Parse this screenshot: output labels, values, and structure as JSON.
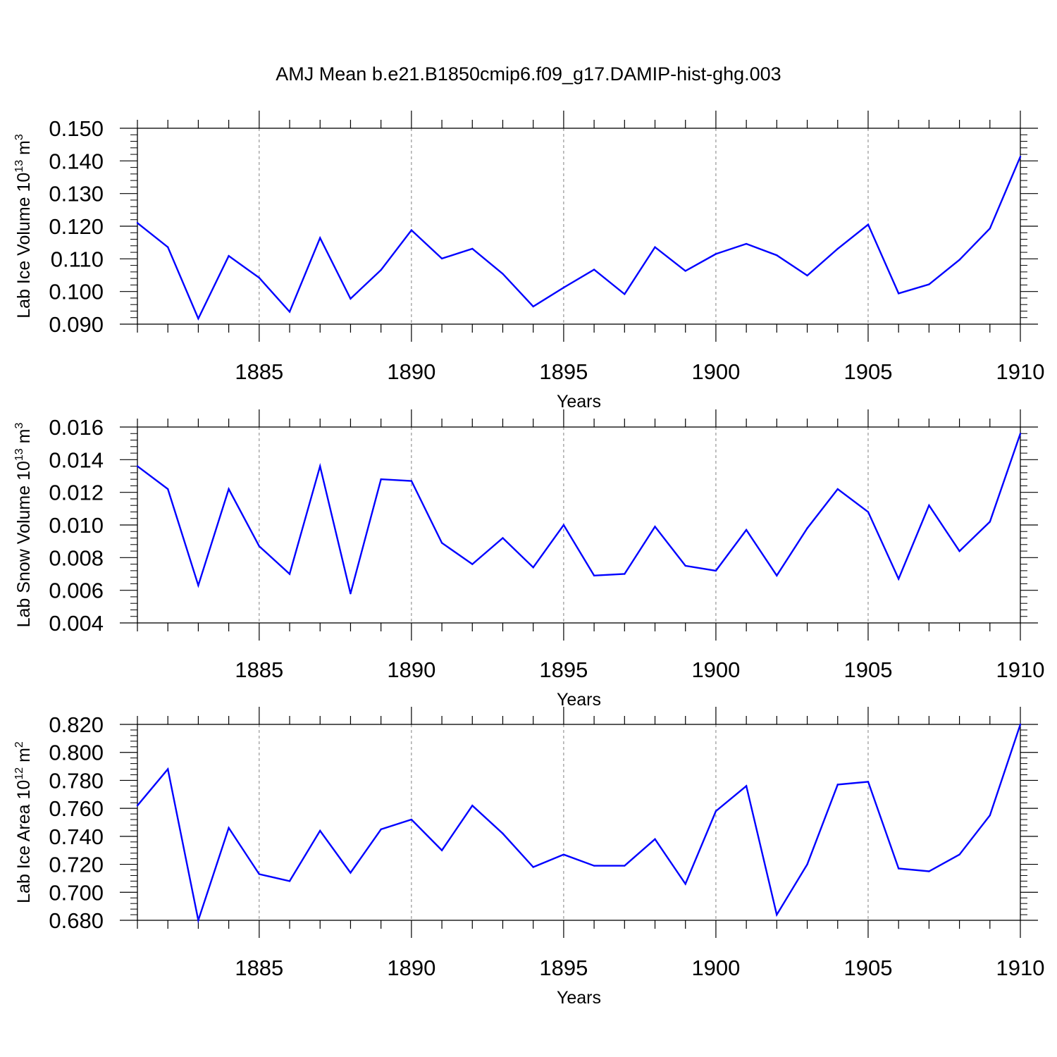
{
  "title": "AMJ Mean b.e21.B1850cmip6.f09_g17.DAMIP-hist-ghg.003",
  "colors": {
    "line": "#0000ff",
    "axis": "#000000",
    "grid": "#808080"
  },
  "chart_data": [
    {
      "type": "line",
      "ylabel": "Lab Ice Volume 10",
      "ylabel_exp": "13",
      "ylabel_unit": "m",
      "ylabel_unit_exp": "3",
      "xlabel": "Years",
      "xlim": [
        1881,
        1910
      ],
      "ylim": [
        0.09,
        0.15
      ],
      "yticks": [
        "0.090",
        "0.100",
        "0.110",
        "0.120",
        "0.130",
        "0.140",
        "0.150"
      ],
      "xticks": [
        "1885",
        "1890",
        "1895",
        "1900",
        "1905",
        "1910"
      ],
      "grid": "dashed vertical at major x ticks",
      "x": [
        1881,
        1882,
        1883,
        1884,
        1885,
        1886,
        1887,
        1888,
        1889,
        1890,
        1891,
        1892,
        1893,
        1894,
        1895,
        1896,
        1897,
        1898,
        1899,
        1900,
        1901,
        1902,
        1903,
        1904,
        1905,
        1906,
        1907,
        1908,
        1909,
        1910
      ],
      "values": [
        0.121,
        0.1136,
        0.0917,
        0.1109,
        0.1042,
        0.0938,
        0.1164,
        0.0978,
        0.1066,
        0.1188,
        0.1101,
        0.1131,
        0.1054,
        0.0954,
        0.1012,
        0.1067,
        0.0992,
        0.1136,
        0.1063,
        0.1115,
        0.1146,
        0.1111,
        0.1049,
        0.1131,
        0.1205,
        0.0994,
        0.1022,
        0.1097,
        0.1193,
        0.1413
      ]
    },
    {
      "type": "line",
      "ylabel": "Lab Snow Volume 10",
      "ylabel_exp": "13",
      "ylabel_unit": "m",
      "ylabel_unit_exp": "3",
      "xlabel": "Years",
      "xlim": [
        1881,
        1910
      ],
      "ylim": [
        0.004,
        0.016
      ],
      "yticks": [
        "0.004",
        "0.006",
        "0.008",
        "0.010",
        "0.012",
        "0.014",
        "0.016"
      ],
      "xticks": [
        "1885",
        "1890",
        "1895",
        "1900",
        "1905",
        "1910"
      ],
      "grid": "dashed vertical at major x ticks",
      "x": [
        1881,
        1882,
        1883,
        1884,
        1885,
        1886,
        1887,
        1888,
        1889,
        1890,
        1891,
        1892,
        1893,
        1894,
        1895,
        1896,
        1897,
        1898,
        1899,
        1900,
        1901,
        1902,
        1903,
        1904,
        1905,
        1906,
        1907,
        1908,
        1909,
        1910
      ],
      "values": [
        0.0136,
        0.0122,
        0.0063,
        0.0122,
        0.0087,
        0.007,
        0.0136,
        0.0058,
        0.0128,
        0.0127,
        0.0089,
        0.0076,
        0.0092,
        0.0074,
        0.01,
        0.0069,
        0.007,
        0.0099,
        0.0075,
        0.0072,
        0.0097,
        0.0069,
        0.0098,
        0.0122,
        0.0108,
        0.0067,
        0.0112,
        0.0084,
        0.0102,
        0.0156
      ]
    },
    {
      "type": "line",
      "ylabel": "Lab Ice Area 10",
      "ylabel_exp": "12",
      "ylabel_unit": "m",
      "ylabel_unit_exp": "2",
      "xlabel": "Years",
      "xlim": [
        1881,
        1910
      ],
      "ylim": [
        0.68,
        0.82
      ],
      "yticks": [
        "0.680",
        "0.700",
        "0.720",
        "0.740",
        "0.760",
        "0.780",
        "0.800",
        "0.820"
      ],
      "xticks": [
        "1885",
        "1890",
        "1895",
        "1900",
        "1905",
        "1910"
      ],
      "grid": "dashed vertical at major x ticks",
      "x": [
        1881,
        1882,
        1883,
        1884,
        1885,
        1886,
        1887,
        1888,
        1889,
        1890,
        1891,
        1892,
        1893,
        1894,
        1895,
        1896,
        1897,
        1898,
        1899,
        1900,
        1901,
        1902,
        1903,
        1904,
        1905,
        1906,
        1907,
        1908,
        1909,
        1910
      ],
      "values": [
        0.762,
        0.788,
        0.68,
        0.746,
        0.713,
        0.708,
        0.744,
        0.714,
        0.745,
        0.752,
        0.73,
        0.762,
        0.742,
        0.718,
        0.727,
        0.719,
        0.719,
        0.738,
        0.706,
        0.758,
        0.776,
        0.684,
        0.72,
        0.777,
        0.779,
        0.717,
        0.715,
        0.727,
        0.755,
        0.82
      ]
    }
  ]
}
